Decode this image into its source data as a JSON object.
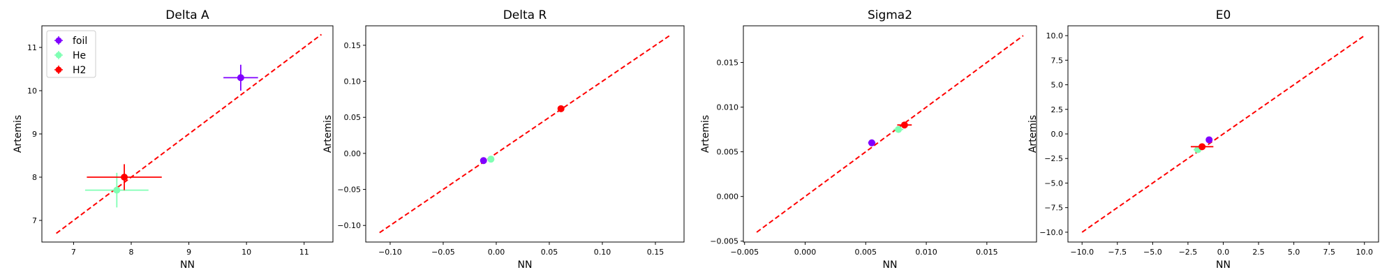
{
  "chart_data": [
    {
      "type": "scatter",
      "title": "Delta A",
      "xlabel": "NN",
      "ylabel": "Artemis",
      "xlim": [
        6.45,
        11.5
      ],
      "ylim": [
        6.5,
        11.5
      ],
      "xticks": [
        7,
        8,
        9,
        10,
        11
      ],
      "yticks": [
        7,
        8,
        9,
        10,
        11
      ],
      "xtick_labels": [
        "7",
        "8",
        "9",
        "10",
        "11"
      ],
      "ytick_labels": [
        "7",
        "8",
        "9",
        "10",
        "11"
      ],
      "identity_line": [
        6.7,
        11.3
      ],
      "legend": {
        "position": "top-left",
        "entries": [
          "foil",
          "He",
          "H2"
        ]
      },
      "series": [
        {
          "name": "foil",
          "color": "#8000ff",
          "x": 9.9,
          "y": 10.3,
          "xerr": 0.3,
          "yerr": 0.3
        },
        {
          "name": "He",
          "color": "#80ffb4",
          "x": 7.75,
          "y": 7.7,
          "xerr": 0.55,
          "yerr": 0.4
        },
        {
          "name": "H2",
          "color": "#ff0000",
          "x": 7.88,
          "y": 8.0,
          "xerr": 0.65,
          "yerr": 0.3
        }
      ]
    },
    {
      "type": "scatter",
      "title": "Delta R",
      "xlabel": "NN",
      "ylabel": "Artemis",
      "xlim": [
        -0.123,
        0.177
      ],
      "ylim": [
        -0.123,
        0.177
      ],
      "xticks": [
        -0.1,
        -0.05,
        0.0,
        0.05,
        0.1,
        0.15
      ],
      "yticks": [
        -0.1,
        -0.05,
        0.0,
        0.05,
        0.1,
        0.15
      ],
      "xtick_labels": [
        "−0.10",
        "−0.05",
        "0.00",
        "0.05",
        "0.10",
        "0.15"
      ],
      "ytick_labels": [
        "−0.10",
        "−0.05",
        "0.00",
        "0.05",
        "0.10",
        "0.15"
      ],
      "identity_line": [
        -0.11,
        0.163
      ],
      "series": [
        {
          "name": "foil",
          "color": "#8000ff",
          "x": -0.012,
          "y": -0.01,
          "xerr": 0.003,
          "yerr": 0.002
        },
        {
          "name": "He",
          "color": "#80ffb4",
          "x": -0.005,
          "y": -0.008,
          "xerr": 0.002,
          "yerr": 0.002
        },
        {
          "name": "H2",
          "color": "#ff0000",
          "x": 0.061,
          "y": 0.062,
          "xerr": 0.003,
          "yerr": 0.002
        }
      ]
    },
    {
      "type": "scatter",
      "title": "Sigma2",
      "xlabel": "NN",
      "ylabel": "Artemis",
      "xlim": [
        -0.0051,
        0.0191
      ],
      "ylim": [
        -0.0051,
        0.0191
      ],
      "xticks": [
        -0.005,
        0.0,
        0.005,
        0.01,
        0.015
      ],
      "yticks": [
        -0.005,
        0.0,
        0.005,
        0.01,
        0.015
      ],
      "xtick_labels": [
        "−0.005",
        "0.000",
        "0.005",
        "0.010",
        "0.015"
      ],
      "ytick_labels": [
        "−0.005",
        "0.000",
        "0.005",
        "0.010",
        "0.015"
      ],
      "identity_line": [
        -0.004,
        0.018
      ],
      "series": [
        {
          "name": "foil",
          "color": "#8000ff",
          "x": 0.0055,
          "y": 0.006,
          "xerr": 0.0003,
          "yerr": 0.0002
        },
        {
          "name": "He",
          "color": "#80ffb4",
          "x": 0.0077,
          "y": 0.0075,
          "xerr": 0.0004,
          "yerr": 0.0003
        },
        {
          "name": "H2",
          "color": "#ff0000",
          "x": 0.0082,
          "y": 0.008,
          "xerr": 0.0006,
          "yerr": 0.0002
        }
      ]
    },
    {
      "type": "scatter",
      "title": "E0",
      "xlabel": "NN",
      "ylabel": "Artemis",
      "xlim": [
        -11.0,
        11.0
      ],
      "ylim": [
        -11.0,
        11.0
      ],
      "xticks": [
        -10,
        -7.5,
        -5,
        -2.5,
        0,
        2.5,
        5,
        7.5,
        10
      ],
      "yticks": [
        -10,
        -7.5,
        -5,
        -2.5,
        0,
        2.5,
        5,
        7.5,
        10
      ],
      "xtick_labels": [
        "−10.0",
        "−7.5",
        "−5.0",
        "−2.5",
        "0.0",
        "2.5",
        "5.0",
        "7.5",
        "10.0"
      ],
      "ytick_labels": [
        "−10.0",
        "−7.5",
        "−5.0",
        "−2.5",
        "0.0",
        "2.5",
        "5.0",
        "7.5",
        "10.0"
      ],
      "identity_line": [
        -10.0,
        10.0
      ],
      "series": [
        {
          "name": "foil",
          "color": "#8000ff",
          "x": -1.0,
          "y": -0.6,
          "xerr": 0.2,
          "yerr": 0.2
        },
        {
          "name": "He",
          "color": "#80ffb4",
          "x": -1.8,
          "y": -1.6,
          "xerr": 0.3,
          "yerr": 0.3
        },
        {
          "name": "H2",
          "color": "#ff0000",
          "x": -1.5,
          "y": -1.3,
          "xerr": 0.8,
          "yerr": 0.3
        }
      ]
    }
  ]
}
